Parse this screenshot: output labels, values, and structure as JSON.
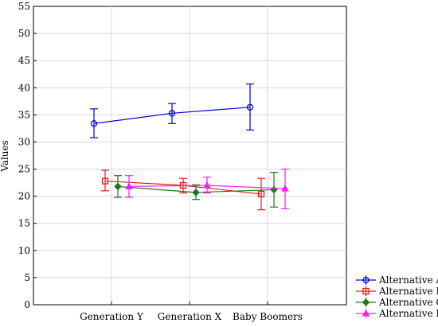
{
  "chart_data": {
    "type": "line",
    "title": "",
    "xlabel": "",
    "ylabel": "Values",
    "ylim": [
      0,
      55
    ],
    "yticks": [
      0,
      5,
      10,
      15,
      20,
      25,
      30,
      35,
      40,
      45,
      50,
      55
    ],
    "categories": [
      "Generation Y",
      "Generation X",
      "Baby Boomers"
    ],
    "grid": true,
    "legend_position": "bottom-right",
    "error_bars": true,
    "series": [
      {
        "name": "Alternative A",
        "color": "#0000dd",
        "marker": "circle",
        "values": [
          33.4,
          35.3,
          36.4
        ],
        "err_low": [
          30.8,
          33.4,
          32.2
        ],
        "err_high": [
          36.1,
          37.1,
          40.7
        ]
      },
      {
        "name": "Alternative B",
        "color": "#e41a1c",
        "marker": "square",
        "values": [
          22.8,
          22.0,
          20.4
        ],
        "err_low": [
          21.0,
          20.6,
          17.5
        ],
        "err_high": [
          24.8,
          23.3,
          23.3
        ]
      },
      {
        "name": "Alternative C",
        "color": "#1a7a1a",
        "marker": "diamond",
        "values": [
          21.8,
          20.7,
          21.2
        ],
        "err_low": [
          19.8,
          19.4,
          18.0
        ],
        "err_high": [
          23.8,
          22.1,
          24.4
        ]
      },
      {
        "name": "Alternative D",
        "color": "#ee22ee",
        "marker": "triangle",
        "values": [
          21.8,
          22.0,
          21.4
        ],
        "err_low": [
          19.8,
          20.6,
          17.7
        ],
        "err_high": [
          23.8,
          23.5,
          25.0
        ]
      }
    ]
  }
}
